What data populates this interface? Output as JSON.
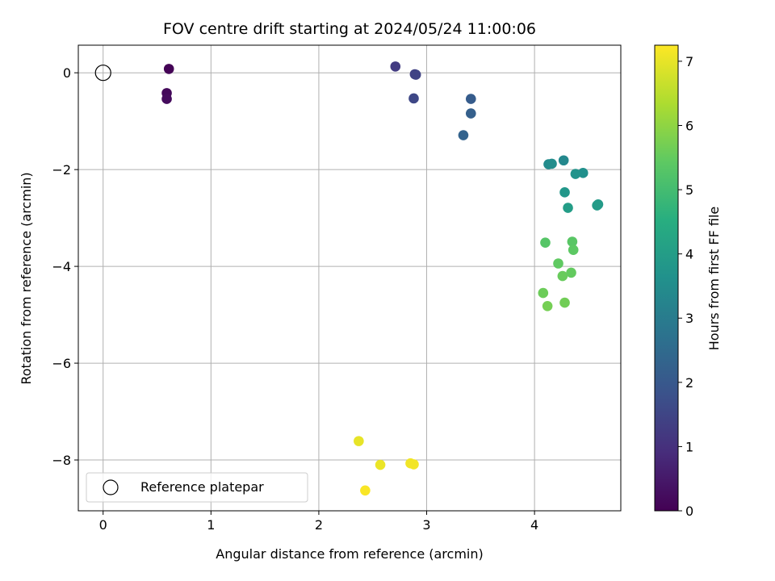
{
  "chart_data": {
    "type": "scatter",
    "title": "FOV centre drift starting at 2024/05/24 11:00:06",
    "xlabel": "Angular distance from reference (arcmin)",
    "ylabel": "Rotation from reference (arcmin)",
    "xlim": [
      -0.23,
      4.8
    ],
    "ylim": [
      -9.05,
      0.57
    ],
    "xticks": [
      0,
      1,
      2,
      3,
      4
    ],
    "yticks": [
      0,
      -2,
      -4,
      -6,
      -8
    ],
    "xtick_labels": [
      "0",
      "1",
      "2",
      "3",
      "4"
    ],
    "ytick_labels": [
      "0",
      "−2",
      "−4",
      "−6",
      "−8"
    ],
    "grid": true,
    "colormap": "viridis",
    "colorbar": {
      "label": "Hours from first FF file",
      "range": [
        0,
        7.25
      ],
      "ticks": [
        0,
        1,
        2,
        3,
        4,
        5,
        6,
        7
      ],
      "tick_labels": [
        "0",
        "1",
        "2",
        "3",
        "4",
        "5",
        "6",
        "7"
      ]
    },
    "legend": {
      "position": "lower-left",
      "entries": [
        "Reference platepar"
      ]
    },
    "reference_point": {
      "x": 0,
      "y": 0
    },
    "points": [
      {
        "x": 0.61,
        "y": 0.08,
        "hours": 0.05
      },
      {
        "x": 0.59,
        "y": -0.42,
        "hours": 0.15
      },
      {
        "x": 0.59,
        "y": -0.54,
        "hours": 0.2
      },
      {
        "x": 2.71,
        "y": 0.13,
        "hours": 1.25
      },
      {
        "x": 2.89,
        "y": -0.03,
        "hours": 1.4
      },
      {
        "x": 2.9,
        "y": -0.04,
        "hours": 1.45
      },
      {
        "x": 2.88,
        "y": -0.53,
        "hours": 1.55
      },
      {
        "x": 3.41,
        "y": -0.54,
        "hours": 2.1
      },
      {
        "x": 3.41,
        "y": -0.84,
        "hours": 2.2
      },
      {
        "x": 3.34,
        "y": -1.29,
        "hours": 2.3
      },
      {
        "x": 4.27,
        "y": -1.81,
        "hours": 3.35
      },
      {
        "x": 4.13,
        "y": -1.89,
        "hours": 3.45
      },
      {
        "x": 4.16,
        "y": -1.88,
        "hours": 3.5
      },
      {
        "x": 4.45,
        "y": -2.07,
        "hours": 3.6
      },
      {
        "x": 4.38,
        "y": -2.09,
        "hours": 3.7
      },
      {
        "x": 4.28,
        "y": -2.47,
        "hours": 3.8
      },
      {
        "x": 4.59,
        "y": -2.72,
        "hours": 3.9
      },
      {
        "x": 4.58,
        "y": -2.74,
        "hours": 3.95
      },
      {
        "x": 4.31,
        "y": -2.79,
        "hours": 4.0
      },
      {
        "x": 4.1,
        "y": -3.51,
        "hours": 5.3
      },
      {
        "x": 4.35,
        "y": -3.49,
        "hours": 5.35
      },
      {
        "x": 4.36,
        "y": -3.66,
        "hours": 5.4
      },
      {
        "x": 4.22,
        "y": -3.94,
        "hours": 5.45
      },
      {
        "x": 4.34,
        "y": -4.13,
        "hours": 5.5
      },
      {
        "x": 4.26,
        "y": -4.2,
        "hours": 5.55
      },
      {
        "x": 4.08,
        "y": -4.55,
        "hours": 5.6
      },
      {
        "x": 4.28,
        "y": -4.75,
        "hours": 5.65
      },
      {
        "x": 4.12,
        "y": -4.82,
        "hours": 5.7
      },
      {
        "x": 2.37,
        "y": -7.61,
        "hours": 7.0
      },
      {
        "x": 2.57,
        "y": -8.1,
        "hours": 7.05
      },
      {
        "x": 2.85,
        "y": -8.07,
        "hours": 7.1
      },
      {
        "x": 2.88,
        "y": -8.09,
        "hours": 7.12
      },
      {
        "x": 2.43,
        "y": -8.63,
        "hours": 7.2
      }
    ]
  }
}
